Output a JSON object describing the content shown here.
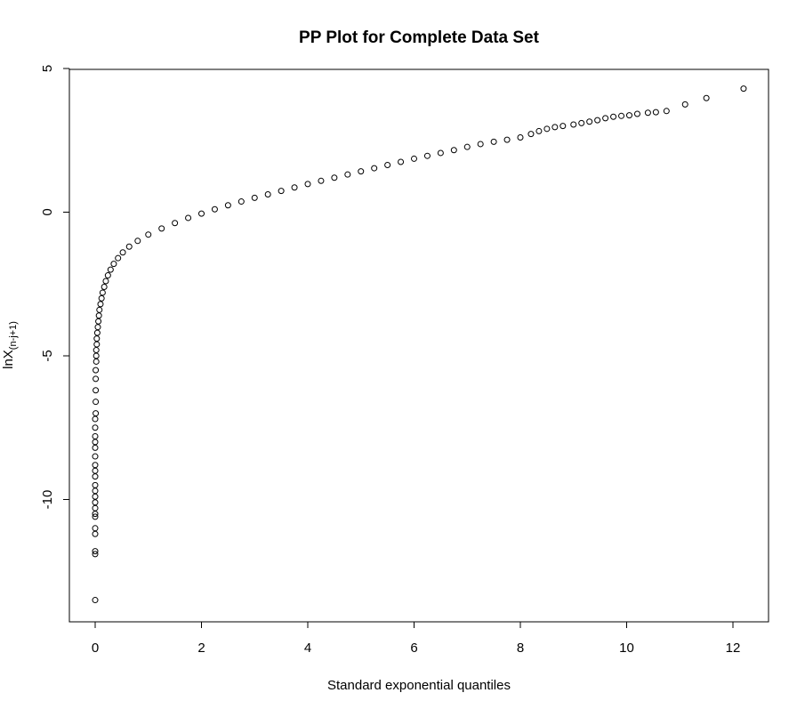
{
  "chart_data": {
    "type": "scatter",
    "title": "PP Plot for Complete Data Set",
    "xlabel": "Standard exponential quantiles",
    "ylabel": {
      "main": "lnX",
      "subscript": "(n-j+1)"
    },
    "xlim": [
      0,
      12.2
    ],
    "ylim": [
      -13.5,
      5
    ],
    "xticks": [
      0,
      2,
      4,
      6,
      8,
      10,
      12
    ],
    "yticks": [
      -10,
      -5,
      0,
      5
    ],
    "grid": false,
    "marker": "open-circle",
    "color": "#000000",
    "points": [
      [
        0.0,
        -13.5
      ],
      [
        0.0,
        -11.9
      ],
      [
        0.0,
        -11.8
      ],
      [
        0.0,
        -11.2
      ],
      [
        0.0,
        -11.0
      ],
      [
        0.0,
        -10.6
      ],
      [
        0.0,
        -10.5
      ],
      [
        0.0,
        -10.3
      ],
      [
        0.0,
        -10.1
      ],
      [
        0.0,
        -9.9
      ],
      [
        0.0,
        -9.7
      ],
      [
        0.0,
        -9.5
      ],
      [
        0.0,
        -9.2
      ],
      [
        0.0,
        -9.0
      ],
      [
        0.0,
        -8.8
      ],
      [
        0.0,
        -8.5
      ],
      [
        0.0,
        -8.2
      ],
      [
        0.0,
        -8.0
      ],
      [
        0.0,
        -7.8
      ],
      [
        0.0,
        -7.5
      ],
      [
        0.0,
        -7.2
      ],
      [
        0.01,
        -7.0
      ],
      [
        0.01,
        -6.6
      ],
      [
        0.01,
        -6.2
      ],
      [
        0.01,
        -5.8
      ],
      [
        0.01,
        -5.5
      ],
      [
        0.02,
        -5.2
      ],
      [
        0.02,
        -5.0
      ],
      [
        0.02,
        -4.8
      ],
      [
        0.03,
        -4.6
      ],
      [
        0.03,
        -4.4
      ],
      [
        0.04,
        -4.2
      ],
      [
        0.05,
        -4.0
      ],
      [
        0.06,
        -3.8
      ],
      [
        0.07,
        -3.6
      ],
      [
        0.08,
        -3.4
      ],
      [
        0.1,
        -3.2
      ],
      [
        0.12,
        -3.0
      ],
      [
        0.14,
        -2.8
      ],
      [
        0.17,
        -2.6
      ],
      [
        0.2,
        -2.4
      ],
      [
        0.24,
        -2.2
      ],
      [
        0.29,
        -2.0
      ],
      [
        0.35,
        -1.8
      ],
      [
        0.43,
        -1.6
      ],
      [
        0.52,
        -1.4
      ],
      [
        0.64,
        -1.2
      ],
      [
        0.8,
        -1.0
      ],
      [
        1.0,
        -0.78
      ],
      [
        1.25,
        -0.57
      ],
      [
        1.5,
        -0.38
      ],
      [
        1.75,
        -0.2
      ],
      [
        2.0,
        -0.05
      ],
      [
        2.25,
        0.1
      ],
      [
        2.5,
        0.24
      ],
      [
        2.75,
        0.37
      ],
      [
        3.0,
        0.5
      ],
      [
        3.25,
        0.62
      ],
      [
        3.5,
        0.74
      ],
      [
        3.75,
        0.86
      ],
      [
        4.0,
        0.98
      ],
      [
        4.25,
        1.09
      ],
      [
        4.5,
        1.2
      ],
      [
        4.75,
        1.31
      ],
      [
        5.0,
        1.42
      ],
      [
        5.25,
        1.53
      ],
      [
        5.5,
        1.64
      ],
      [
        5.75,
        1.75
      ],
      [
        6.0,
        1.86
      ],
      [
        6.25,
        1.96
      ],
      [
        6.5,
        2.06
      ],
      [
        6.75,
        2.16
      ],
      [
        7.0,
        2.27
      ],
      [
        7.25,
        2.37
      ],
      [
        7.5,
        2.45
      ],
      [
        7.75,
        2.52
      ],
      [
        8.0,
        2.6
      ],
      [
        8.2,
        2.72
      ],
      [
        8.35,
        2.82
      ],
      [
        8.5,
        2.9
      ],
      [
        8.65,
        2.96
      ],
      [
        8.8,
        3.0
      ],
      [
        9.0,
        3.05
      ],
      [
        9.15,
        3.1
      ],
      [
        9.3,
        3.15
      ],
      [
        9.45,
        3.2
      ],
      [
        9.6,
        3.27
      ],
      [
        9.75,
        3.32
      ],
      [
        9.9,
        3.35
      ],
      [
        10.05,
        3.37
      ],
      [
        10.2,
        3.42
      ],
      [
        10.4,
        3.46
      ],
      [
        10.55,
        3.48
      ],
      [
        10.75,
        3.52
      ],
      [
        11.1,
        3.75
      ],
      [
        11.5,
        3.97
      ],
      [
        12.2,
        4.3
      ]
    ]
  }
}
